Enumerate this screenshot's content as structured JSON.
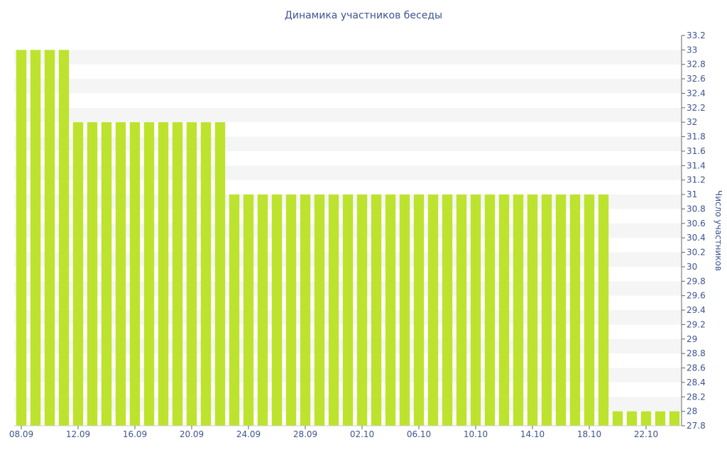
{
  "chart_data": {
    "type": "bar",
    "title": "Динамика участников беседы",
    "xlabel": "",
    "ylabel": "Число участников",
    "ylim": [
      27.8,
      33.2
    ],
    "y_tick_step": 0.2,
    "grid": "horizontal alternating bands",
    "x_tick_labels": [
      "08.09",
      "12.09",
      "16.09",
      "20.09",
      "24.09",
      "28.09",
      "02.10",
      "06.10",
      "10.10",
      "14.10",
      "18.10",
      "22.10"
    ],
    "categories": [
      "08.09",
      "09.09",
      "10.09",
      "11.09",
      "12.09",
      "13.09",
      "14.09",
      "15.09",
      "16.09",
      "17.09",
      "18.09",
      "19.09",
      "20.09",
      "21.09",
      "22.09",
      "23.09",
      "24.09",
      "25.09",
      "26.09",
      "27.09",
      "28.09",
      "29.09",
      "30.09",
      "01.10",
      "02.10",
      "03.10",
      "04.10",
      "05.10",
      "06.10",
      "07.10",
      "08.10",
      "09.10",
      "10.10",
      "11.10",
      "12.10",
      "13.10",
      "14.10",
      "15.10",
      "16.10",
      "17.10",
      "18.10",
      "19.10",
      "20.10",
      "21.10",
      "22.10",
      "23.10",
      "24.10"
    ],
    "values": [
      33,
      33,
      33,
      33,
      32,
      32,
      32,
      32,
      32,
      32,
      32,
      32,
      32,
      32,
      32,
      31,
      31,
      31,
      31,
      31,
      31,
      31,
      31,
      31,
      31,
      31,
      31,
      31,
      31,
      31,
      31,
      31,
      31,
      31,
      31,
      31,
      31,
      31,
      31,
      31,
      31,
      31,
      28,
      28,
      28,
      28,
      28
    ],
    "colors": {
      "bar": "#bde32e",
      "band": "#f5f5f5",
      "text": "#3e5491",
      "axis": "#666666"
    }
  }
}
